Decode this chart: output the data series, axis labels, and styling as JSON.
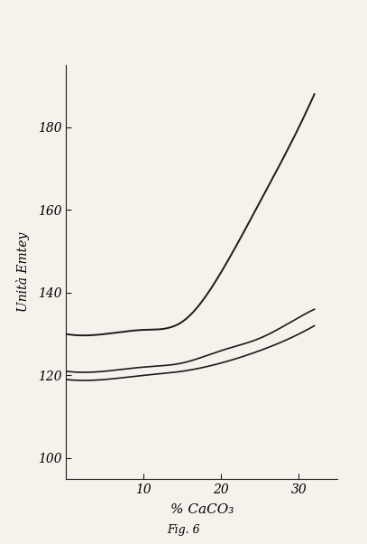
{
  "title": "Fig. 6",
  "xlabel": "% CaCO₃",
  "ylabel": "Unità Emtey",
  "xlim": [
    0,
    35
  ],
  "ylim": [
    95,
    195
  ],
  "xticks": [
    10,
    20,
    30
  ],
  "yticks": [
    100,
    120,
    140,
    160,
    180
  ],
  "background_color": "#f5f2ec",
  "line_color": "#1a1a1a",
  "curve1_x": [
    0,
    5,
    10,
    15,
    20,
    25,
    30,
    32
  ],
  "curve1_y": [
    130,
    130,
    131,
    133,
    145,
    162,
    180,
    188
  ],
  "curve2_x": [
    0,
    5,
    10,
    15,
    20,
    25,
    30,
    32
  ],
  "curve2_y": [
    119,
    119,
    120,
    121,
    123,
    126,
    130,
    132
  ],
  "curve3_x": [
    0,
    5,
    10,
    15,
    20,
    25,
    30,
    32
  ],
  "curve3_y": [
    121,
    121,
    122,
    123,
    126,
    129,
    134,
    136
  ]
}
